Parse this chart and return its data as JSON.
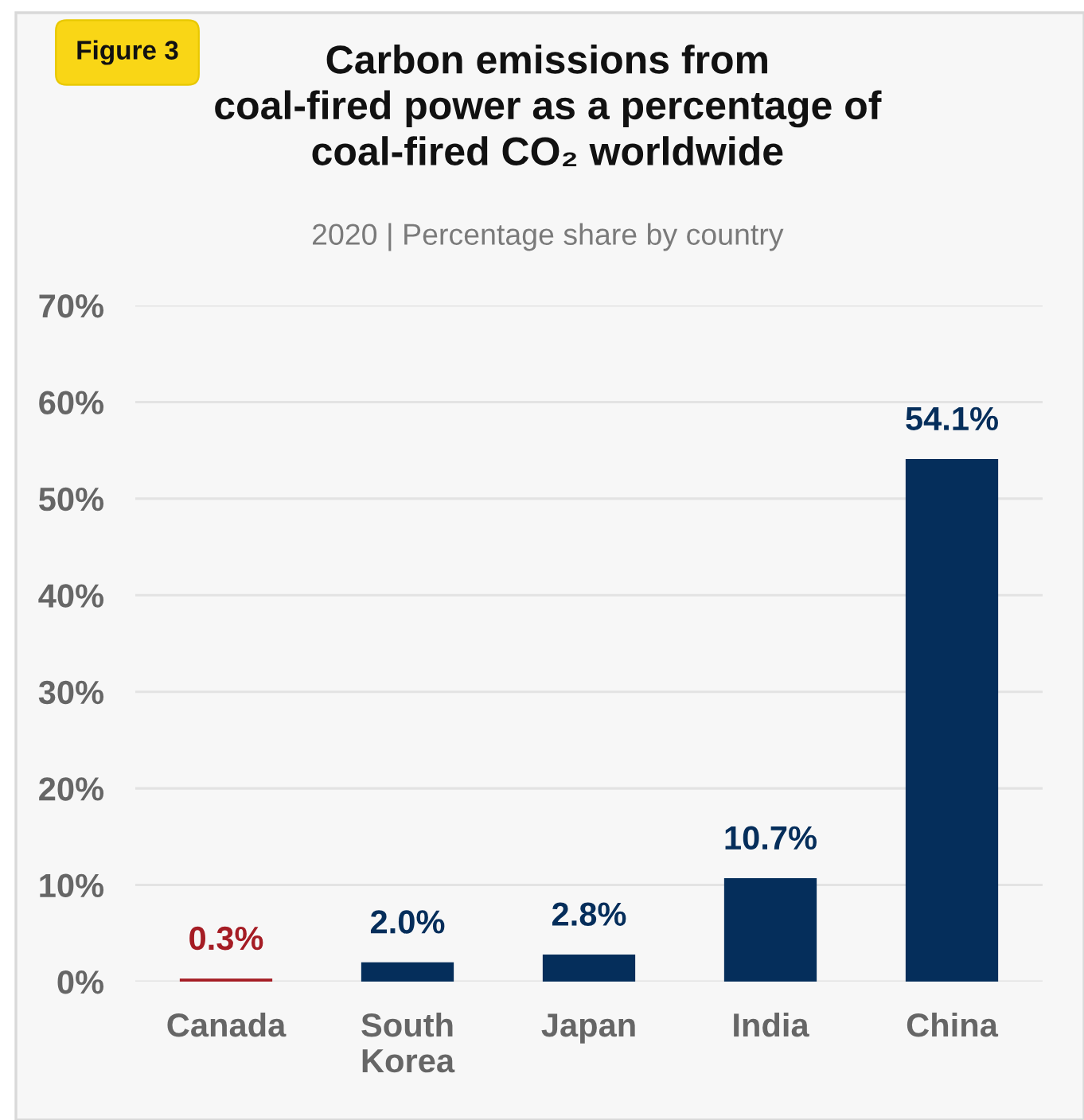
{
  "chart_data": {
    "type": "bar",
    "title": "Carbon emissions from\ncoal-fired power as a percentage of\ncoal-fired CO₂ worldwide",
    "subtitle": "2020 | Percentage share by country",
    "annotations": [
      "Figure 3"
    ],
    "categories": [
      "Canada",
      "South Korea",
      "Japan",
      "India",
      "China"
    ],
    "values": [
      0.3,
      2.0,
      2.8,
      10.7,
      54.1
    ],
    "colors": [
      "#a51c24",
      "#052e5b",
      "#052e5b",
      "#052e5b",
      "#052e5b"
    ],
    "value_labels": [
      "0.3%",
      "2.0%",
      "2.8%",
      "10.7%",
      "54.1%"
    ],
    "ylim": [
      0,
      70
    ],
    "yticks": [
      {
        "value": 0,
        "label": "0%"
      },
      {
        "value": 10,
        "label": "10%"
      },
      {
        "value": 20,
        "label": "20%"
      },
      {
        "value": 30,
        "label": "30%"
      },
      {
        "value": 40,
        "label": "40%"
      },
      {
        "value": 50,
        "label": "50%"
      },
      {
        "value": 60,
        "label": "60%"
      },
      {
        "value": 70,
        "label": "70%"
      }
    ],
    "grid": "y"
  }
}
